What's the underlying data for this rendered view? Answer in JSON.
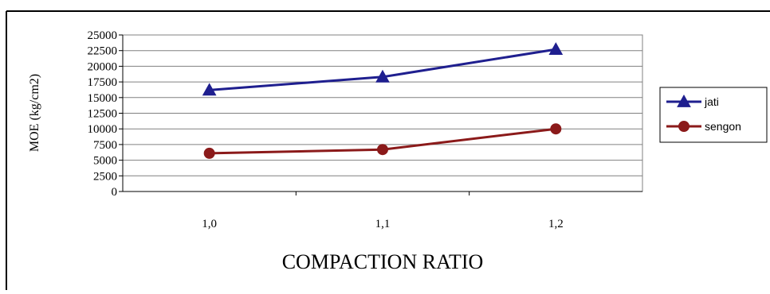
{
  "chart_data": {
    "type": "line",
    "title": "",
    "xlabel": "COMPACTION RATIO",
    "ylabel": "MOE (kg/cm2)",
    "categories": [
      "1,0",
      "1,1",
      "1,2"
    ],
    "ylim": [
      0,
      25000
    ],
    "yticks": [
      0,
      2500,
      5000,
      7500,
      10000,
      12500,
      15000,
      17500,
      20000,
      22500,
      25000
    ],
    "grid": true,
    "legend_position": "right",
    "series": [
      {
        "name": "jati",
        "values": [
          16200,
          18300,
          22700
        ],
        "color": "#1f1f8f",
        "marker": "triangle"
      },
      {
        "name": "sengon",
        "values": [
          6100,
          6700,
          10000
        ],
        "color": "#8b1a1a",
        "marker": "circle"
      }
    ]
  }
}
